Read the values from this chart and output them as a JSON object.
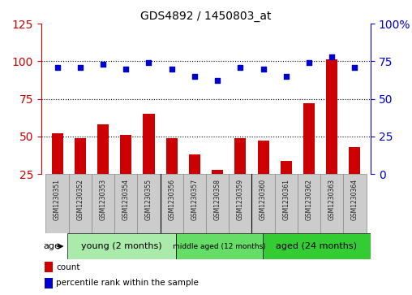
{
  "title": "GDS4892 / 1450803_at",
  "samples": [
    "GSM1230351",
    "GSM1230352",
    "GSM1230353",
    "GSM1230354",
    "GSM1230355",
    "GSM1230356",
    "GSM1230357",
    "GSM1230358",
    "GSM1230359",
    "GSM1230360",
    "GSM1230361",
    "GSM1230362",
    "GSM1230363",
    "GSM1230364"
  ],
  "count_values": [
    52,
    49,
    58,
    51,
    65,
    49,
    38,
    28,
    49,
    47,
    34,
    72,
    101,
    43
  ],
  "percentile_values": [
    71,
    71,
    73,
    70,
    74,
    70,
    65,
    62,
    71,
    70,
    65,
    74,
    78,
    71
  ],
  "groups": [
    {
      "label": "young (2 months)",
      "start": 0,
      "end": 5,
      "color": "#aaeaaa",
      "fontsize": 8
    },
    {
      "label": "middle aged (12 months)",
      "start": 5,
      "end": 9,
      "color": "#66dd66",
      "fontsize": 6.5
    },
    {
      "label": "aged (24 months)",
      "start": 9,
      "end": 14,
      "color": "#33cc33",
      "fontsize": 8
    }
  ],
  "left_ylim": [
    25,
    125
  ],
  "left_yticks": [
    25,
    50,
    75,
    100,
    125
  ],
  "right_ylim": [
    0,
    100
  ],
  "right_yticks": [
    0,
    25,
    50,
    75,
    100
  ],
  "hlines": [
    100,
    75,
    50
  ],
  "bar_color": "#cc0000",
  "scatter_color": "#0000cc",
  "bar_width": 0.5,
  "legend_items": [
    {
      "color": "#cc0000",
      "label": "count"
    },
    {
      "color": "#0000cc",
      "label": "percentile rank within the sample"
    }
  ],
  "left_tick_color": "#cc0000",
  "right_tick_color": "#0000cc",
  "grid_color": "#000000",
  "background_color": "#ffffff",
  "sample_bg_color": "#cccccc",
  "age_label": "age"
}
